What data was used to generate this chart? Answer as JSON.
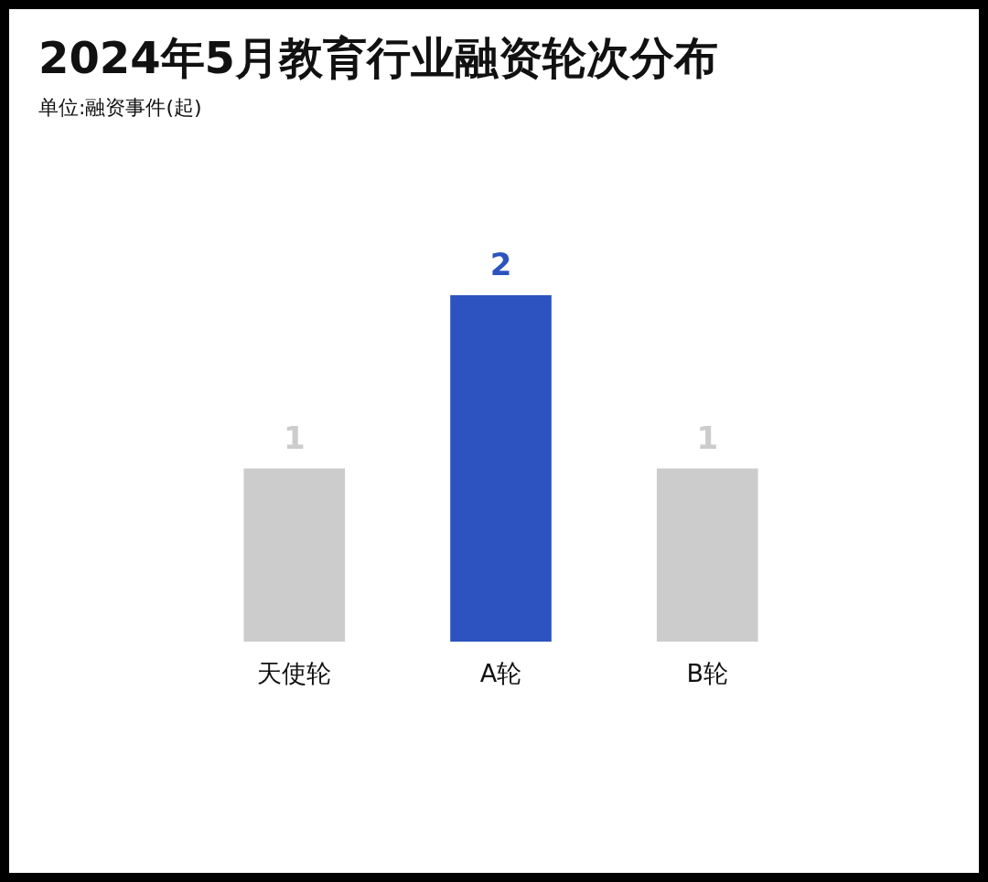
{
  "chart_data": {
    "type": "bar",
    "title": "2024年5月教育行业融资轮次分布",
    "subtitle": "单位:融资事件(起)",
    "categories": [
      "天使轮",
      "A轮",
      "B轮"
    ],
    "values": [
      1,
      2,
      1
    ],
    "colors": [
      "#cccccc",
      "#2c53bf",
      "#cccccc"
    ],
    "data_labels": true,
    "grid": false
  }
}
